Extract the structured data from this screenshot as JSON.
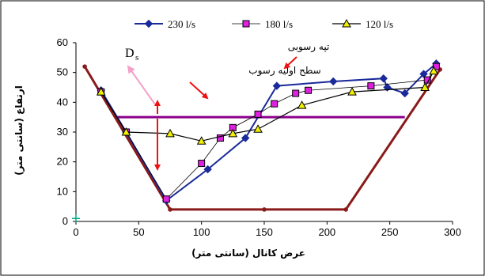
{
  "chart_data": {
    "type": "line",
    "xlabel": "عرض کانال (سانتی متر)",
    "ylabel": "ارتفاع (سانتی متر)",
    "xlim": [
      0,
      300
    ],
    "ylim": [
      0,
      60
    ],
    "x_ticks": [
      "0",
      "50",
      "100",
      "150",
      "200",
      "250",
      "300"
    ],
    "y_ticks": [
      "0",
      "10",
      "20",
      "30",
      "40",
      "50",
      "60"
    ],
    "grid": false,
    "legend_position": "top",
    "series": [
      {
        "name": "230 l/s",
        "color": "#1a2a9a",
        "marker": "diamond",
        "points": [
          [
            20,
            44
          ],
          [
            40,
            30
          ],
          [
            72,
            7
          ],
          [
            105,
            17.5
          ],
          [
            135,
            28
          ],
          [
            160,
            45.5
          ],
          [
            205,
            47
          ],
          [
            245,
            48
          ],
          [
            248,
            45
          ],
          [
            262,
            43
          ],
          [
            277,
            49.5
          ],
          [
            287,
            53
          ]
        ]
      },
      {
        "name": "180 l/s",
        "color": "#000000",
        "marker": "square",
        "marker_fill": "#e020e0",
        "points": [
          [
            20,
            43.5
          ],
          [
            40,
            30
          ],
          [
            72,
            7.5
          ],
          [
            100,
            19.5
          ],
          [
            115,
            28
          ],
          [
            125,
            31.5
          ],
          [
            145,
            36
          ],
          [
            158,
            39.5
          ],
          [
            175,
            43
          ],
          [
            185,
            44
          ],
          [
            235,
            45.5
          ],
          [
            280,
            47.5
          ],
          [
            287,
            52
          ]
        ]
      },
      {
        "name": "120 l/s",
        "color": "#000000",
        "marker": "triangle",
        "marker_fill": "#f0f000",
        "points": [
          [
            20,
            43.5
          ],
          [
            40,
            30
          ],
          [
            75,
            29.5
          ],
          [
            100,
            27
          ],
          [
            125,
            29.5
          ],
          [
            145,
            31
          ],
          [
            180,
            39
          ],
          [
            220,
            43.5
          ],
          [
            278,
            45
          ],
          [
            285,
            50.5
          ]
        ]
      }
    ],
    "channel_profile": {
      "color": "#8b1a1a",
      "points": [
        [
          7,
          52
        ],
        [
          75,
          4
        ],
        [
          215,
          4
        ],
        [
          290,
          51
        ]
      ],
      "bed_markers": [
        [
          150,
          4
        ]
      ]
    },
    "initial_bed_level": {
      "color": "#8b008b",
      "y": 35,
      "x_range": [
        33,
        262
      ]
    },
    "origin_marker": {
      "color": "#00aa88",
      "point": [
        0,
        1
      ]
    },
    "annotations": {
      "deposit_label": "تپه رسوبی",
      "initial_bed_label": "سطح اولیه رسوب",
      "ds_label": "D",
      "ds_subscript": "s"
    }
  }
}
